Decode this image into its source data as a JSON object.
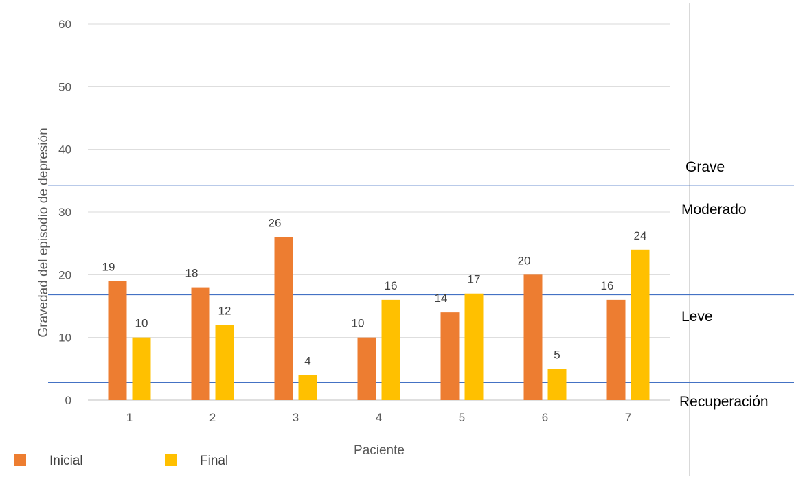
{
  "chart_data": {
    "type": "bar",
    "categories": [
      "1",
      "2",
      "3",
      "4",
      "5",
      "6",
      "7"
    ],
    "series": [
      {
        "name": "Inicial",
        "values": [
          19,
          18,
          26,
          10,
          14,
          20,
          16
        ],
        "color": "#ED7D31"
      },
      {
        "name": "Final",
        "values": [
          10,
          12,
          4,
          16,
          17,
          5,
          24
        ],
        "color": "#FFC000"
      }
    ],
    "xlabel": "Paciente",
    "ylabel": "Gravedad del episodio de depresión",
    "ylim": [
      0,
      60
    ],
    "yticks": [
      0,
      10,
      20,
      30,
      40,
      50,
      60
    ],
    "grid": true,
    "legend_position": "bottom-left",
    "threshold_lines": {
      "values": [
        2.8,
        16.8,
        34.3
      ],
      "color": "#4472C4"
    },
    "zone_labels": [
      "Grave",
      "Moderado",
      "Leve",
      "Recuperación"
    ]
  }
}
